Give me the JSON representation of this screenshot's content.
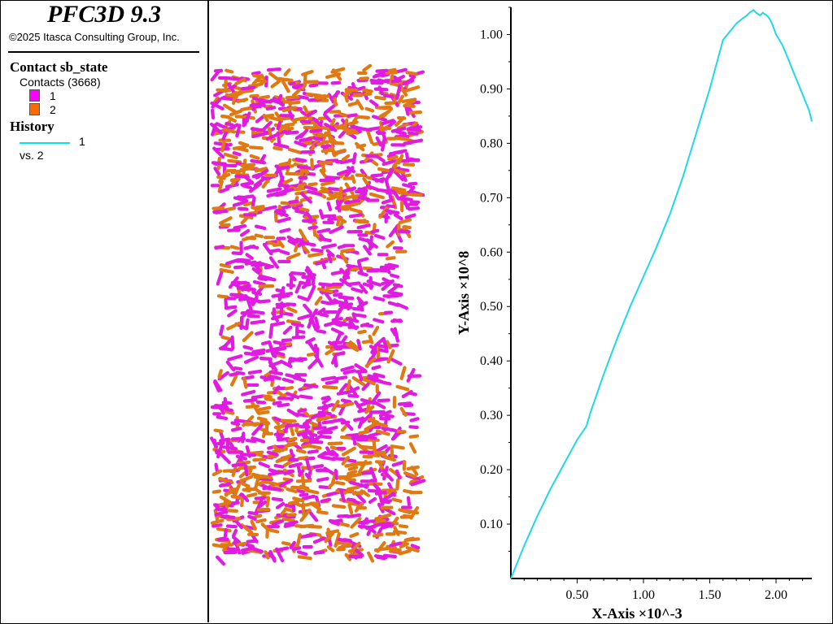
{
  "app": {
    "title": "PFC3D 9.3",
    "copyright": "©2025 Itasca Consulting Group, Inc."
  },
  "legend": {
    "contact_heading": "Contact sb_state",
    "contacts_label": "Contacts (3668)",
    "states": [
      {
        "label": "1",
        "color": "#ff00ff"
      },
      {
        "label": "2",
        "color": "#ff6a00"
      }
    ],
    "history_heading": "History",
    "history_item": "1",
    "history_vs": "vs. 2",
    "history_color": "#00e5ee"
  },
  "colors": {
    "contact_magenta": "#e11be1",
    "contact_orange": "#df7a12",
    "curve": "#1fd8ea"
  },
  "chart_data": {
    "type": "line",
    "xlabel": "X-Axis ×10^-3",
    "ylabel": "Y-Axis ×10^8",
    "xlim": [
      0.0,
      2.27
    ],
    "ylim": [
      0.0,
      1.05
    ],
    "xticks": [
      "0.50",
      "1.00",
      "1.50",
      "2.00"
    ],
    "xtick_values": [
      0.5,
      1.0,
      1.5,
      2.0
    ],
    "yticks": [
      "0.10",
      "0.20",
      "0.30",
      "0.40",
      "0.50",
      "0.60",
      "0.70",
      "0.80",
      "0.90",
      "1.00"
    ],
    "ytick_values": [
      0.1,
      0.2,
      0.3,
      0.4,
      0.5,
      0.6,
      0.7,
      0.8,
      0.9,
      1.0
    ],
    "series": [
      {
        "x": [
          0.0,
          0.1,
          0.2,
          0.3,
          0.4,
          0.5,
          0.57,
          0.6,
          0.7,
          0.8,
          0.9,
          1.0,
          1.1,
          1.15,
          1.2,
          1.3,
          1.4,
          1.5,
          1.6,
          1.7,
          1.75,
          1.78,
          1.8,
          1.83,
          1.85,
          1.88,
          1.9,
          1.93,
          1.95,
          1.97,
          2.0,
          2.05,
          2.1,
          2.15,
          2.2,
          2.25,
          2.27
        ],
        "y": [
          0.0,
          0.06,
          0.115,
          0.165,
          0.21,
          0.255,
          0.28,
          0.305,
          0.375,
          0.44,
          0.5,
          0.555,
          0.61,
          0.64,
          0.67,
          0.74,
          0.82,
          0.9,
          0.99,
          1.02,
          1.03,
          1.035,
          1.04,
          1.045,
          1.04,
          1.035,
          1.04,
          1.035,
          1.03,
          1.02,
          1.0,
          0.98,
          0.95,
          0.92,
          0.89,
          0.86,
          0.84
        ]
      }
    ],
    "grid": false,
    "legend": "none"
  }
}
